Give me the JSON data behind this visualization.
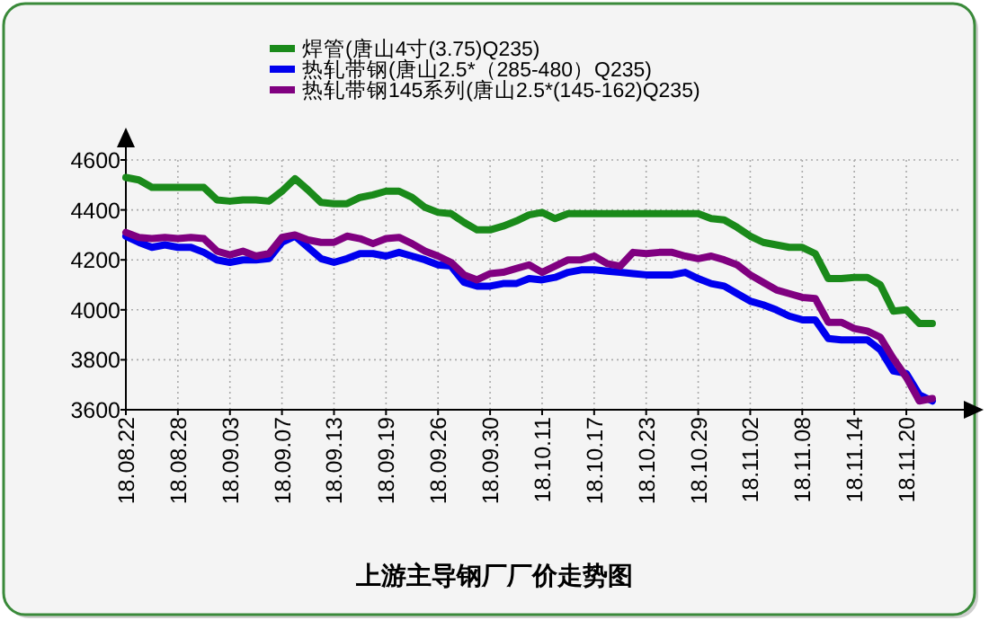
{
  "chart_data": {
    "type": "line",
    "title": "上游主导钢厂厂价走势图",
    "legend": "top",
    "categories": [
      "18.08.22",
      null,
      null,
      null,
      "18.08.28",
      null,
      null,
      null,
      "18.09.03",
      null,
      null,
      null,
      "18.09.07",
      null,
      null,
      null,
      "18.09.13",
      null,
      null,
      null,
      "18.09.19",
      null,
      null,
      null,
      "18.09.26",
      null,
      null,
      null,
      "18.09.30",
      null,
      null,
      null,
      "18.10.11",
      null,
      null,
      null,
      "18.10.17",
      null,
      null,
      null,
      "18.10.23",
      null,
      null,
      null,
      "18.10.29",
      null,
      null,
      null,
      "18.11.02",
      null,
      null,
      null,
      "18.11.08",
      null,
      null,
      null,
      "18.11.14",
      null,
      null,
      null,
      "18.11.20",
      null,
      null
    ],
    "series": [
      {
        "name": "焊管(唐山4寸(3.75)Q235)",
        "color": "#1a8a1a",
        "values": [
          4530,
          4520,
          4490,
          4490,
          4490,
          4490,
          4490,
          4440,
          4435,
          4440,
          4440,
          4435,
          4475,
          4525,
          4480,
          4430,
          4425,
          4425,
          4450,
          4460,
          4475,
          4475,
          4450,
          4410,
          4390,
          4385,
          4350,
          4320,
          4320,
          4335,
          4355,
          4380,
          4390,
          4365,
          4385,
          4385,
          4385,
          4385,
          4385,
          4385,
          4385,
          4385,
          4385,
          4385,
          4385,
          4365,
          4360,
          4330,
          4295,
          4270,
          4260,
          4250,
          4250,
          4225,
          4125,
          4125,
          4130,
          4130,
          4100,
          3995,
          4000,
          3945,
          3945
        ]
      },
      {
        "name": "热轧带钢(唐山2.5*（285-480）Q235)",
        "color": "#0000ee",
        "values": [
          4295,
          4270,
          4250,
          4260,
          4250,
          4250,
          4230,
          4200,
          4190,
          4200,
          4200,
          4205,
          4270,
          4295,
          4250,
          4205,
          4190,
          4205,
          4225,
          4225,
          4215,
          4230,
          4215,
          4200,
          4180,
          4175,
          4110,
          4095,
          4095,
          4105,
          4105,
          4125,
          4120,
          4130,
          4150,
          4160,
          4160,
          4155,
          4150,
          4145,
          4140,
          4140,
          4140,
          4150,
          4125,
          4105,
          4095,
          4065,
          4035,
          4020,
          4000,
          3975,
          3960,
          3960,
          3885,
          3880,
          3880,
          3880,
          3840,
          3755,
          3745,
          3660,
          3635
        ]
      },
      {
        "name": "热轧带钢145系列(唐山2.5*(145-162)Q235)",
        "color": "#800080",
        "values": [
          4310,
          4290,
          4285,
          4290,
          4285,
          4290,
          4285,
          4235,
          4220,
          4235,
          4215,
          4225,
          4290,
          4300,
          4280,
          4270,
          4270,
          4295,
          4285,
          4265,
          4285,
          4290,
          4265,
          4235,
          4215,
          4190,
          4140,
          4120,
          4145,
          4150,
          4165,
          4180,
          4150,
          4175,
          4200,
          4200,
          4215,
          4185,
          4175,
          4230,
          4225,
          4230,
          4230,
          4215,
          4205,
          4215,
          4200,
          4180,
          4140,
          4110,
          4080,
          4065,
          4050,
          4045,
          3950,
          3950,
          3925,
          3915,
          3890,
          3805,
          3730,
          3635,
          3645
        ]
      }
    ],
    "ylim": [
      3600,
      4600
    ],
    "yticks": [
      3600,
      3800,
      4000,
      4200,
      4400,
      4600
    ],
    "grid": true
  }
}
